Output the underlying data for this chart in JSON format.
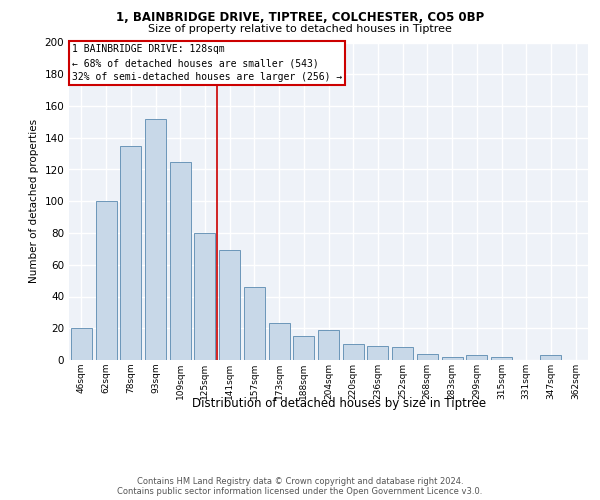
{
  "title1": "1, BAINBRIDGE DRIVE, TIPTREE, COLCHESTER, CO5 0BP",
  "title2": "Size of property relative to detached houses in Tiptree",
  "xlabel": "Distribution of detached houses by size in Tiptree",
  "ylabel": "Number of detached properties",
  "categories": [
    "46sqm",
    "62sqm",
    "78sqm",
    "93sqm",
    "109sqm",
    "125sqm",
    "141sqm",
    "157sqm",
    "173sqm",
    "188sqm",
    "204sqm",
    "220sqm",
    "236sqm",
    "252sqm",
    "268sqm",
    "283sqm",
    "299sqm",
    "315sqm",
    "331sqm",
    "347sqm",
    "362sqm"
  ],
  "values": [
    20,
    100,
    135,
    152,
    125,
    80,
    69,
    46,
    23,
    15,
    19,
    10,
    9,
    8,
    4,
    2,
    3,
    2,
    0,
    3,
    0
  ],
  "bar_color": "#c8d8e8",
  "bar_edge_color": "#5a8ab0",
  "background_color": "#eef2f8",
  "grid_color": "#ffffff",
  "annotation_box_color": "#ffffff",
  "annotation_box_edge": "#cc0000",
  "vline_color": "#cc0000",
  "vline_x": 5.5,
  "annotation_title": "1 BAINBRIDGE DRIVE: 128sqm",
  "annotation_line1": "← 68% of detached houses are smaller (543)",
  "annotation_line2": "32% of semi-detached houses are larger (256) →",
  "footer1": "Contains HM Land Registry data © Crown copyright and database right 2024.",
  "footer2": "Contains public sector information licensed under the Open Government Licence v3.0.",
  "ylim": [
    0,
    200
  ],
  "yticks": [
    0,
    20,
    40,
    60,
    80,
    100,
    120,
    140,
    160,
    180,
    200
  ]
}
